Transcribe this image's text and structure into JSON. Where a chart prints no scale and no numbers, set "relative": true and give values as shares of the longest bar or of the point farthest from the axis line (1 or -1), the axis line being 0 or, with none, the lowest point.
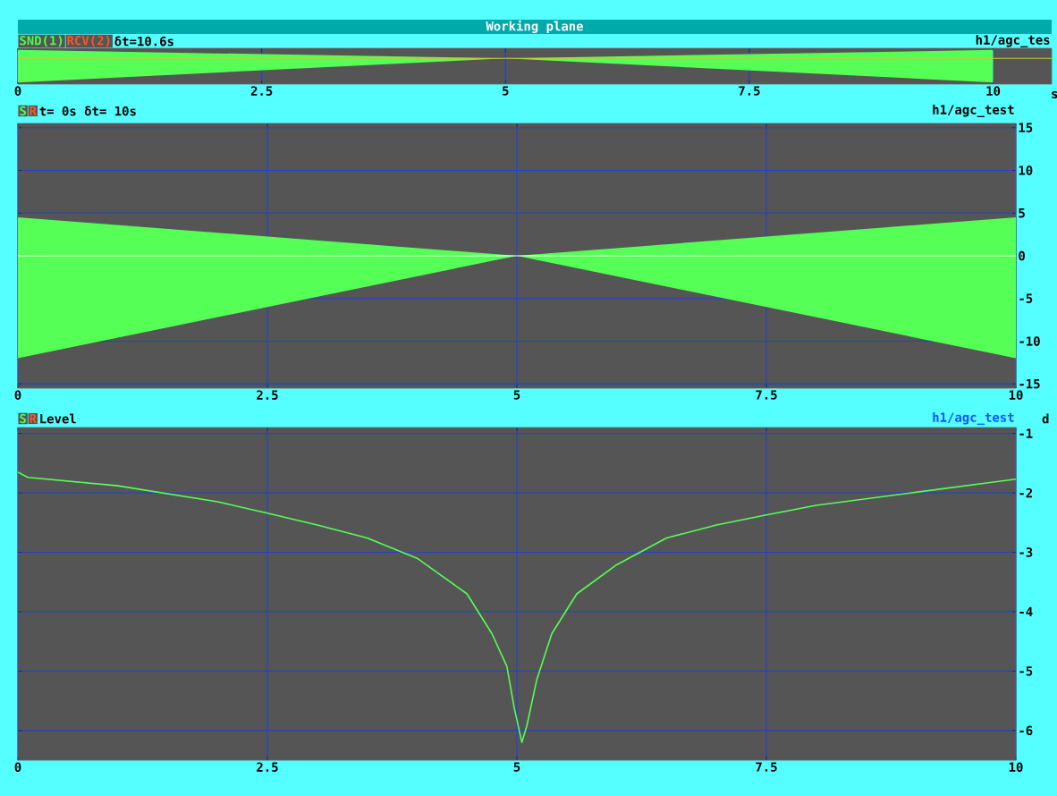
{
  "chart_data": [
    {
      "type": "area",
      "title": "Working plane",
      "annotations": [
        "SND(1)",
        "RCV(2)",
        "δt=10.6s",
        "h1/agc_tes"
      ],
      "xlabel": "s",
      "relative": true,
      "x": [
        0,
        5,
        10
      ],
      "series": [
        {
          "color": "#55ff55",
          "values": [
            0.35,
            0,
            0.35
          ]
        },
        {
          "color": "#55ff55",
          "values": [
            -1,
            0,
            -1
          ]
        }
      ],
      "xlim": [
        0,
        10.6
      ],
      "xticks": [
        0,
        2.5,
        5,
        7.5,
        10
      ],
      "tick_labels": "x",
      "grid": "x",
      "ref_lines": [
        {
          "axis": "y",
          "value": 0,
          "color": "#cccc33"
        }
      ]
    },
    {
      "type": "area",
      "annotations": [
        "S",
        "R",
        "t=  0s δt= 10s",
        "h1/agc_test"
      ],
      "x": [
        0,
        5,
        10
      ],
      "series": [
        {
          "color": "#55ff55",
          "values": [
            4.5,
            0,
            4.5
          ]
        },
        {
          "color": "#55ff55",
          "values": [
            -12,
            0,
            -12
          ]
        }
      ],
      "xlim": [
        0,
        10
      ],
      "ylim": [
        -15.5,
        15.5
      ],
      "xticks": [
        0,
        2.5,
        5,
        7.5,
        10
      ],
      "yticks": [
        15,
        10,
        5,
        0,
        -5,
        -10,
        -15
      ],
      "grid": true,
      "ref_lines": [
        {
          "axis": "y",
          "value": 0,
          "color": "#ffffff"
        }
      ]
    },
    {
      "type": "line",
      "annotations": [
        "S",
        "R",
        "Level",
        "h1/agc_test"
      ],
      "ylabel": "d",
      "x": [
        0,
        0.1,
        1,
        2,
        2.5,
        3,
        3.5,
        4,
        4.5,
        4.75,
        4.9,
        4.97,
        5.05,
        5.1,
        5.2,
        5.35,
        5.6,
        6,
        6.5,
        7,
        7.5,
        8,
        9,
        10
      ],
      "series": [
        {
          "color": "#55ff55",
          "values": [
            -1.65,
            -1.74,
            -1.88,
            -2.15,
            -2.34,
            -2.54,
            -2.76,
            -3.1,
            -3.7,
            -4.37,
            -4.92,
            -5.59,
            -6.2,
            -5.92,
            -5.14,
            -4.37,
            -3.7,
            -3.21,
            -2.76,
            -2.54,
            -2.37,
            -2.21,
            -1.99,
            -1.77
          ]
        }
      ],
      "xlim": [
        0,
        10
      ],
      "ylim": [
        -6.5,
        -0.9
      ],
      "xticks": [
        0,
        2.5,
        5,
        7.5,
        10
      ],
      "yticks": [
        -1,
        -2,
        -3,
        -4,
        -5,
        -6
      ],
      "grid": true
    }
  ]
}
